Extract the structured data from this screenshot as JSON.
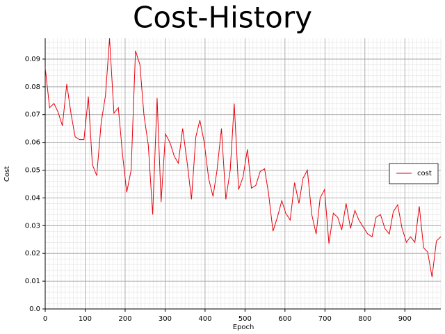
{
  "chart_data": {
    "type": "line",
    "title": "Cost-History",
    "xlabel": "Epoch",
    "ylabel": "Cost",
    "x": [
      0,
      11,
      22,
      32,
      43,
      54,
      65,
      75,
      86,
      97,
      108,
      118,
      129,
      140,
      151,
      161,
      172,
      183,
      194,
      204,
      215,
      226,
      237,
      247,
      258,
      269,
      280,
      290,
      301,
      312,
      323,
      333,
      344,
      355,
      366,
      377,
      387,
      398,
      409,
      420,
      430,
      441,
      452,
      463,
      473,
      484,
      495,
      506,
      516,
      527,
      538,
      549,
      559,
      570,
      581,
      592,
      602,
      613,
      624,
      635,
      645,
      656,
      667,
      678,
      688,
      699,
      710,
      721,
      732,
      742,
      753,
      764,
      775,
      785,
      796,
      807,
      818,
      828,
      839,
      850,
      861,
      871,
      882,
      893,
      904,
      914,
      925,
      936,
      947,
      957,
      968,
      979,
      990
    ],
    "series": [
      {
        "name": "cost",
        "color": "#e8000b",
        "values": [
          0.087,
          0.0725,
          0.074,
          0.071,
          0.066,
          0.081,
          0.07,
          0.062,
          0.061,
          0.061,
          0.0765,
          0.052,
          0.048,
          0.067,
          0.077,
          0.0975,
          0.0705,
          0.0725,
          0.055,
          0.042,
          0.05,
          0.093,
          0.088,
          0.07,
          0.059,
          0.034,
          0.076,
          0.0385,
          0.063,
          0.06,
          0.055,
          0.0525,
          0.065,
          0.053,
          0.0395,
          0.062,
          0.068,
          0.06,
          0.047,
          0.0405,
          0.05,
          0.065,
          0.0395,
          0.05,
          0.074,
          0.043,
          0.0475,
          0.0575,
          0.0435,
          0.0445,
          0.0495,
          0.0505,
          0.0415,
          0.028,
          0.033,
          0.039,
          0.0345,
          0.032,
          0.0455,
          0.038,
          0.047,
          0.05,
          0.034,
          0.027,
          0.04,
          0.043,
          0.0235,
          0.0345,
          0.033,
          0.0285,
          0.038,
          0.029,
          0.0355,
          0.032,
          0.0295,
          0.027,
          0.026,
          0.033,
          0.034,
          0.029,
          0.027,
          0.035,
          0.0375,
          0.029,
          0.024,
          0.026,
          0.024,
          0.037,
          0.022,
          0.0205,
          0.0115,
          0.0245,
          0.026
        ]
      }
    ],
    "xlim": [
      0,
      990
    ],
    "ylim": [
      0,
      0.0975
    ],
    "xticks": [
      0,
      100,
      200,
      300,
      400,
      500,
      600,
      700,
      800,
      900
    ],
    "yticks": [
      {
        "value": 0,
        "label": "0.0"
      },
      0.01,
      0.02,
      0.03,
      0.04,
      0.05,
      0.06,
      0.07,
      0.08,
      0.09
    ],
    "grid": true,
    "minor_grid": true,
    "legend": "right"
  }
}
